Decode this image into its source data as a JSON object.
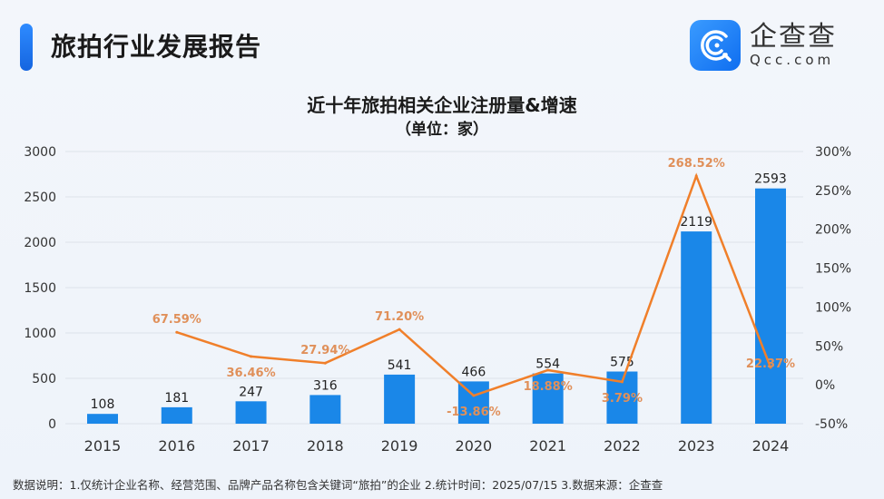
{
  "header": {
    "title": "旅拍行业发展报告"
  },
  "logo": {
    "cn": "企查查",
    "en": "Qcc.com",
    "color": "#1a7ef5"
  },
  "chart_data": {
    "type": "bar+line",
    "title": "近十年旅拍相关企业注册量&增速",
    "subtitle": "（单位：家）",
    "categories": [
      "2015",
      "2016",
      "2017",
      "2018",
      "2019",
      "2020",
      "2021",
      "2022",
      "2023",
      "2024"
    ],
    "series": [
      {
        "type": "bar",
        "axis": "left",
        "color": "#1a87e8",
        "values": [
          108,
          181,
          247,
          316,
          541,
          466,
          554,
          575,
          2119,
          2593
        ],
        "labels": [
          "108",
          "181",
          "247",
          "316",
          "541",
          "466",
          "554",
          "575",
          "2119",
          "2593"
        ]
      },
      {
        "type": "line",
        "axis": "right",
        "color": "#f07f2a",
        "values": [
          null,
          67.59,
          36.46,
          27.94,
          71.2,
          -13.86,
          18.88,
          3.79,
          268.52,
          22.37
        ],
        "labels": [
          "",
          "67.59%",
          "36.46%",
          "27.94%",
          "71.20%",
          "-13.86%",
          "18.88%",
          "3.79%",
          "268.52%",
          "22.37%"
        ]
      }
    ],
    "y_left": {
      "range": [
        0,
        3000
      ],
      "ticks": [
        "0",
        "500",
        "1000",
        "1500",
        "2000",
        "2500",
        "3000"
      ],
      "values": [
        0,
        500,
        1000,
        1500,
        2000,
        2500,
        3000
      ]
    },
    "y_right": {
      "range": [
        -50,
        300
      ],
      "ticks": [
        "-50%",
        "0%",
        "50%",
        "100%",
        "150%",
        "200%",
        "250%",
        "300%"
      ],
      "values": [
        -50,
        0,
        50,
        100,
        150,
        200,
        250,
        300
      ]
    },
    "grid": true
  },
  "footnote": "数据说明：1.仅统计企业名称、经营范围、品牌产品名称包含关键词“旅拍”的企业   2.统计时间：2025/07/15    3.数据来源：企查查"
}
